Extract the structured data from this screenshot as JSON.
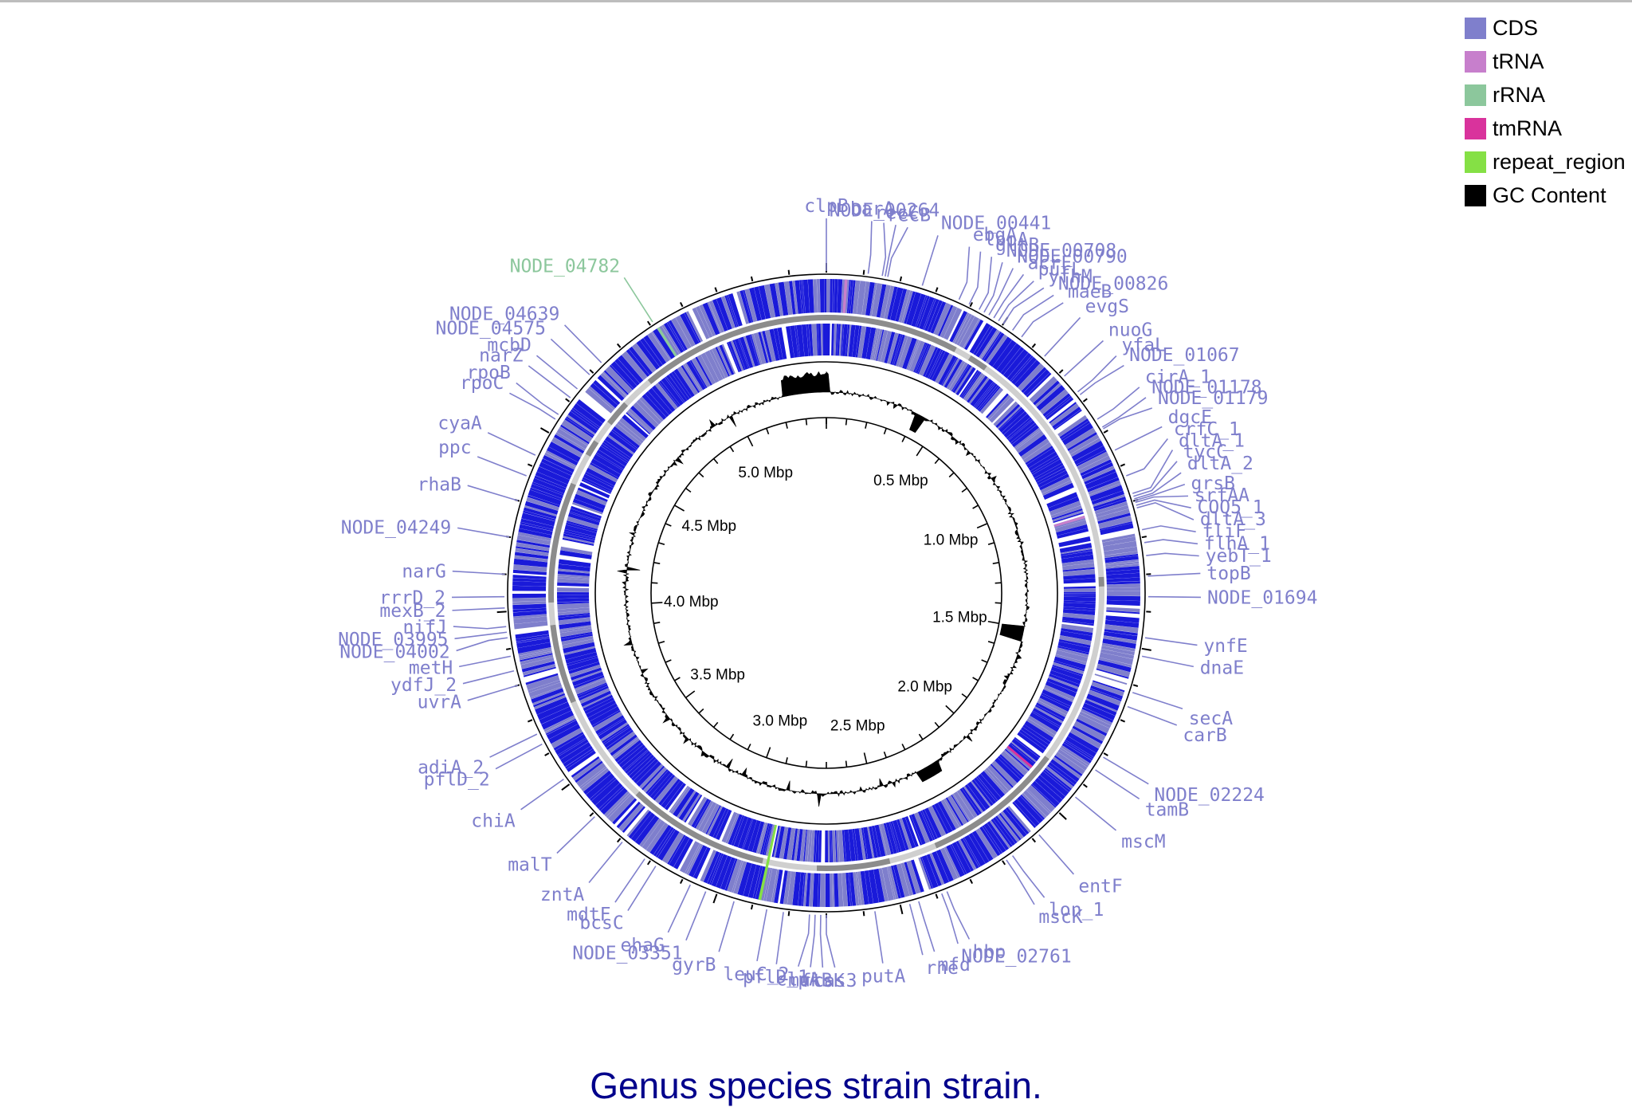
{
  "caption": "Genus species strain strain.",
  "genome": {
    "length_mbp": 5.4
  },
  "colors": {
    "cds": "#7f7fcc",
    "cds_dark": "#1a1ad9",
    "trna": "#c77fcc",
    "rrna": "#8cc79c",
    "tmrna": "#d9339c",
    "repeat_region": "#85e045",
    "gc": "#000000",
    "contig_dark": "#8c8c8c",
    "contig_light": "#cfcfcf"
  },
  "legend": [
    {
      "label": "CDS",
      "color": "#7f7fcc"
    },
    {
      "label": "tRNA",
      "color": "#c77fcc"
    },
    {
      "label": "rRNA",
      "color": "#8cc79c"
    },
    {
      "label": "tmRNA",
      "color": "#d9339c"
    },
    {
      "label": "repeat_region",
      "color": "#85e045"
    },
    {
      "label": "GC Content",
      "color": "#000000"
    }
  ],
  "ticks": [
    {
      "label": "0.5 Mbp",
      "mbp": 0.5
    },
    {
      "label": "1.0 Mbp",
      "mbp": 1.0
    },
    {
      "label": "1.5 Mbp",
      "mbp": 1.5
    },
    {
      "label": "2.0 Mbp",
      "mbp": 2.0
    },
    {
      "label": "2.5 Mbp",
      "mbp": 2.5
    },
    {
      "label": "3.0 Mbp",
      "mbp": 3.0
    },
    {
      "label": "3.5 Mbp",
      "mbp": 3.5
    },
    {
      "label": "4.0 Mbp",
      "mbp": 4.0
    },
    {
      "label": "4.5 Mbp",
      "mbp": 4.5
    },
    {
      "label": "5.0 Mbp",
      "mbp": 5.0
    }
  ],
  "genes": [
    {
      "name": "clpB",
      "mbp": 0.0,
      "type": "CDS"
    },
    {
      "name": "barA",
      "mbp": 0.112,
      "type": "CDS"
    },
    {
      "name": "NODE_00264",
      "mbp": 0.15,
      "type": "CDS"
    },
    {
      "name": "recC",
      "mbp": 0.158,
      "type": "CDS"
    },
    {
      "name": "recB",
      "mbp": 0.165,
      "type": "CDS"
    },
    {
      "name": "NODE_00441",
      "mbp": 0.26,
      "type": "CDS"
    },
    {
      "name": "ebgA",
      "mbp": 0.365,
      "type": "CDS"
    },
    {
      "name": "lpoA",
      "mbp": 0.395,
      "type": "CDS"
    },
    {
      "name": "gltB",
      "mbp": 0.425,
      "type": "CDS"
    },
    {
      "name": "NODE_00708",
      "mbp": 0.44,
      "type": "CDS"
    },
    {
      "name": "NODE_00790",
      "mbp": 0.455,
      "type": "CDS"
    },
    {
      "name": "acrF",
      "mbp": 0.47,
      "type": "CDS"
    },
    {
      "name": "purL",
      "mbp": 0.485,
      "type": "CDS"
    },
    {
      "name": "yfhM",
      "mbp": 0.5,
      "type": "CDS"
    },
    {
      "name": "NODE_00826",
      "mbp": 0.53,
      "type": "CDS"
    },
    {
      "name": "maeB",
      "mbp": 0.56,
      "type": "CDS"
    },
    {
      "name": "evgS",
      "mbp": 0.64,
      "type": "CDS"
    },
    {
      "name": "nuoG",
      "mbp": 0.715,
      "type": "CDS"
    },
    {
      "name": "yfaL",
      "mbp": 0.77,
      "type": "CDS"
    },
    {
      "name": "NODE_01067",
      "mbp": 0.78,
      "type": "CDS"
    },
    {
      "name": "cirA_1",
      "mbp": 0.86,
      "type": "CDS"
    },
    {
      "name": "NODE_01178",
      "mbp": 0.885,
      "type": "CDS"
    },
    {
      "name": "NODE_01179",
      "mbp": 0.89,
      "type": "CDS"
    },
    {
      "name": "dgcE",
      "mbp": 0.955,
      "type": "CDS"
    },
    {
      "name": "crfC_1",
      "mbp": 1.03,
      "type": "CDS"
    },
    {
      "name": "dltA_1",
      "mbp": 1.08,
      "type": "CDS"
    },
    {
      "name": "tycC",
      "mbp": 1.088,
      "type": "CDS"
    },
    {
      "name": "dltA_2",
      "mbp": 1.095,
      "type": "CDS"
    },
    {
      "name": "grsB",
      "mbp": 1.1,
      "type": "CDS"
    },
    {
      "name": "srfAA",
      "mbp": 1.105,
      "type": "CDS"
    },
    {
      "name": "COQ5_1",
      "mbp": 1.113,
      "type": "CDS"
    },
    {
      "name": "dltA_3",
      "mbp": 1.12,
      "type": "CDS"
    },
    {
      "name": "fliF",
      "mbp": 1.18,
      "type": "CDS"
    },
    {
      "name": "flhA_1",
      "mbp": 1.215,
      "type": "CDS"
    },
    {
      "name": "yebT_1",
      "mbp": 1.25,
      "type": "CDS"
    },
    {
      "name": "topB",
      "mbp": 1.305,
      "type": "CDS"
    },
    {
      "name": "NODE_01694",
      "mbp": 1.36,
      "type": "CDS"
    },
    {
      "name": "ynfE",
      "mbp": 1.47,
      "type": "CDS"
    },
    {
      "name": "dnaE",
      "mbp": 1.52,
      "type": "CDS"
    },
    {
      "name": "secA",
      "mbp": 1.62,
      "type": "CDS"
    },
    {
      "name": "carB",
      "mbp": 1.66,
      "type": "CDS"
    },
    {
      "name": "NODE_02224",
      "mbp": 1.81,
      "type": "CDS"
    },
    {
      "name": "tamB",
      "mbp": 1.85,
      "type": "CDS"
    },
    {
      "name": "mscM",
      "mbp": 1.94,
      "type": "CDS"
    },
    {
      "name": "entF",
      "mbp": 2.08,
      "type": "CDS"
    },
    {
      "name": "lon_1",
      "mbp": 2.17,
      "type": "CDS"
    },
    {
      "name": "mscK",
      "mbp": 2.19,
      "type": "CDS"
    },
    {
      "name": "hbp",
      "mbp": 2.37,
      "type": "CDS"
    },
    {
      "name": "NODE_02761",
      "mbp": 2.385,
      "type": "CDS"
    },
    {
      "name": "mfd",
      "mbp": 2.45,
      "type": "CDS"
    },
    {
      "name": "rne",
      "mbp": 2.475,
      "type": "CDS"
    },
    {
      "name": "putA",
      "mbp": 2.57,
      "type": "CDS"
    },
    {
      "name": "cas3",
      "mbp": 2.7,
      "type": "CDS"
    },
    {
      "name": "ftsK",
      "mbp": 2.715,
      "type": "CDS"
    },
    {
      "name": "mukB",
      "mbp": 2.73,
      "type": "CDS"
    },
    {
      "name": "clpA",
      "mbp": 2.745,
      "type": "CDS"
    },
    {
      "name": "pflD_1",
      "mbp": 2.815,
      "type": "CDS"
    },
    {
      "name": "leuC_2",
      "mbp": 2.86,
      "type": "CDS"
    },
    {
      "name": "gyrB",
      "mbp": 2.95,
      "type": "CDS"
    },
    {
      "name": "NODE_03351",
      "mbp": 3.03,
      "type": "CDS"
    },
    {
      "name": "ehaG",
      "mbp": 3.075,
      "type": "CDS"
    },
    {
      "name": "bcsC",
      "mbp": 3.18,
      "type": "CDS"
    },
    {
      "name": "mdtF",
      "mbp": 3.215,
      "type": "CDS"
    },
    {
      "name": "zntA",
      "mbp": 3.29,
      "type": "CDS"
    },
    {
      "name": "malT",
      "mbp": 3.39,
      "type": "CDS"
    },
    {
      "name": "chiA",
      "mbp": 3.52,
      "type": "CDS"
    },
    {
      "name": "pflD_2",
      "mbp": 3.63,
      "type": "CDS"
    },
    {
      "name": "adiA_2",
      "mbp": 3.66,
      "type": "CDS"
    },
    {
      "name": "uvrA",
      "mbp": 3.8,
      "type": "CDS"
    },
    {
      "name": "ydfJ_2",
      "mbp": 3.84,
      "type": "CDS"
    },
    {
      "name": "metH",
      "mbp": 3.88,
      "type": "CDS"
    },
    {
      "name": "NODE_04002",
      "mbp": 3.93,
      "type": "CDS"
    },
    {
      "name": "NODE_03995",
      "mbp": 3.945,
      "type": "CDS"
    },
    {
      "name": "nifJ",
      "mbp": 3.96,
      "type": "CDS"
    },
    {
      "name": "mexB_2",
      "mbp": 4.01,
      "type": "CDS"
    },
    {
      "name": "rrrD_2",
      "mbp": 4.04,
      "type": "CDS"
    },
    {
      "name": "narG",
      "mbp": 4.1,
      "type": "CDS"
    },
    {
      "name": "NODE_04249",
      "mbp": 4.2,
      "type": "CDS"
    },
    {
      "name": "rhaB",
      "mbp": 4.3,
      "type": "CDS"
    },
    {
      "name": "ppc",
      "mbp": 4.37,
      "type": "CDS"
    },
    {
      "name": "cyaA",
      "mbp": 4.43,
      "type": "CDS"
    },
    {
      "name": "rpoC",
      "mbp": 4.54,
      "type": "CDS"
    },
    {
      "name": "rpoB",
      "mbp": 4.555,
      "type": "CDS"
    },
    {
      "name": "narZ",
      "mbp": 4.61,
      "type": "CDS"
    },
    {
      "name": "mcbD",
      "mbp": 4.64,
      "type": "CDS"
    },
    {
      "name": "NODE_04575",
      "mbp": 4.69,
      "type": "CDS"
    },
    {
      "name": "NODE_04639",
      "mbp": 4.735,
      "type": "CDS"
    },
    {
      "name": "NODE_04782",
      "mbp": 4.91,
      "type": "rRNA"
    }
  ]
}
